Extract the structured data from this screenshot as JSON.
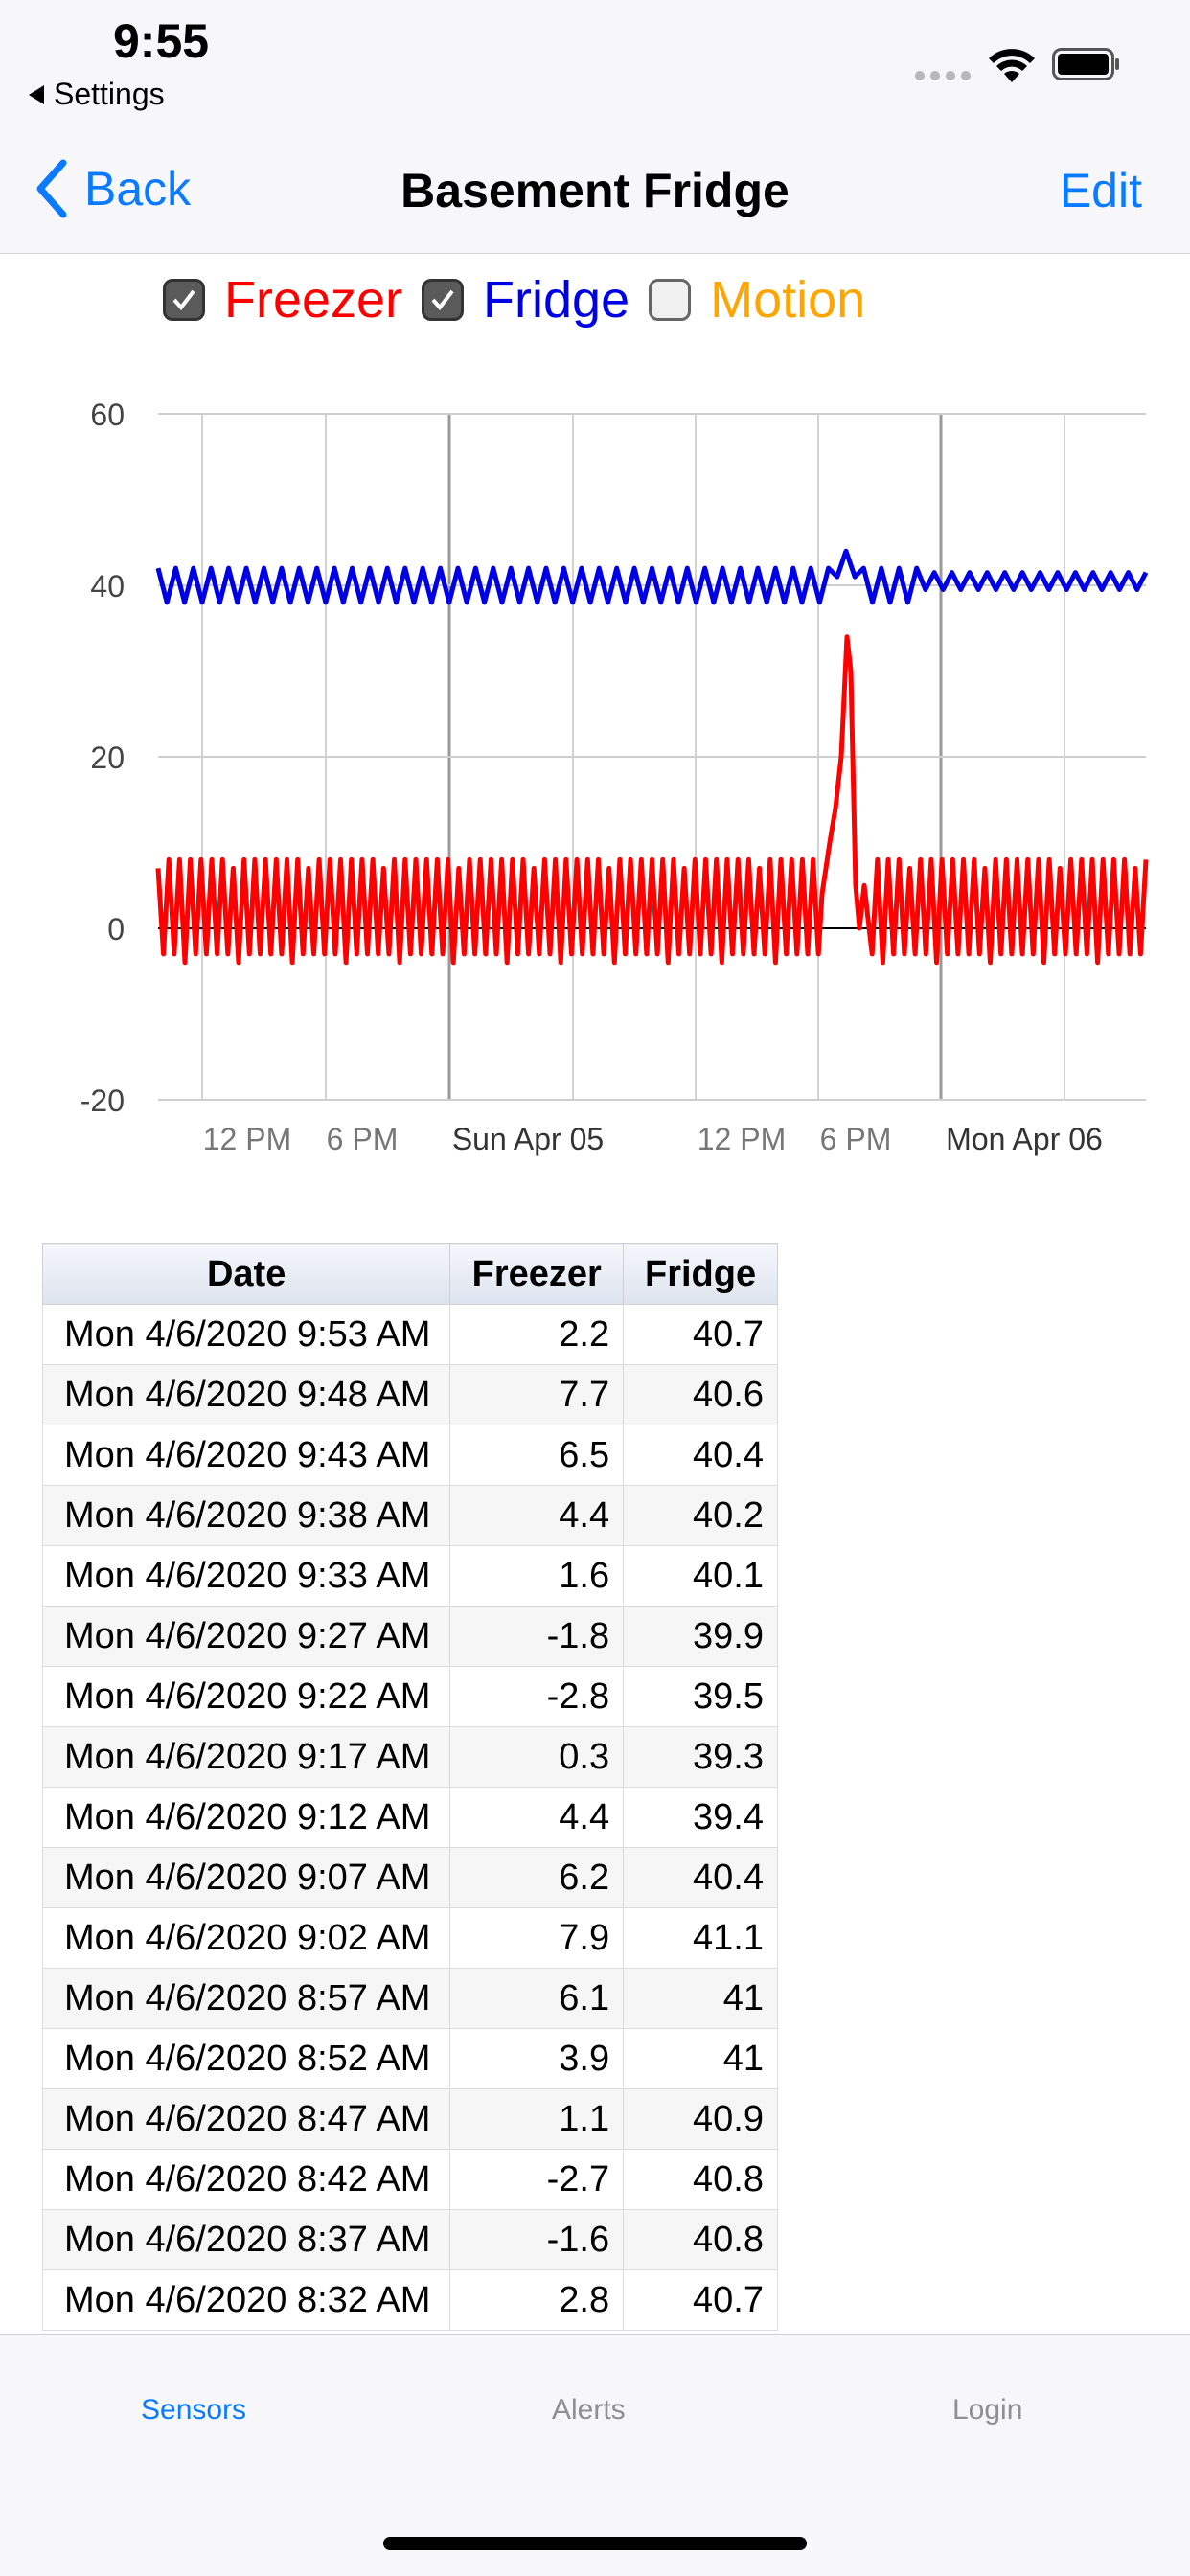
{
  "status": {
    "time": "9:55",
    "back_app": "Settings"
  },
  "nav": {
    "back": "Back",
    "title": "Basement Fridge",
    "edit": "Edit"
  },
  "legend": [
    {
      "label": "Freezer",
      "checked": true,
      "color": "#ff0000"
    },
    {
      "label": "Fridge",
      "checked": true,
      "color": "#0000e6"
    },
    {
      "label": "Motion",
      "checked": false,
      "color": "#ffa500"
    }
  ],
  "chart_data": {
    "type": "line",
    "ylim": [
      -20,
      60
    ],
    "y_ticks": [
      "60",
      "40",
      "20",
      "0",
      "-20"
    ],
    "x_ticks": [
      "12 PM",
      "6 PM",
      "Sun Apr 05",
      "12 PM",
      "6 PM",
      "Mon Apr 06"
    ],
    "series": [
      {
        "name": "Freezer",
        "color": "#ff0000",
        "pattern": "oscillating",
        "baseline_min": -3,
        "baseline_max": 8,
        "spike_peak": 34
      },
      {
        "name": "Fridge",
        "color": "#0000e6",
        "pattern": "oscillating",
        "baseline_min": 38,
        "baseline_max": 42,
        "spike_peak": 44
      }
    ]
  },
  "table": {
    "headers": [
      "Date",
      "Freezer",
      "Fridge"
    ],
    "rows": [
      [
        "Mon 4/6/2020 9:53 AM",
        "2.2",
        "40.7"
      ],
      [
        "Mon 4/6/2020 9:48 AM",
        "7.7",
        "40.6"
      ],
      [
        "Mon 4/6/2020 9:43 AM",
        "6.5",
        "40.4"
      ],
      [
        "Mon 4/6/2020 9:38 AM",
        "4.4",
        "40.2"
      ],
      [
        "Mon 4/6/2020 9:33 AM",
        "1.6",
        "40.1"
      ],
      [
        "Mon 4/6/2020 9:27 AM",
        "-1.8",
        "39.9"
      ],
      [
        "Mon 4/6/2020 9:22 AM",
        "-2.8",
        "39.5"
      ],
      [
        "Mon 4/6/2020 9:17 AM",
        "0.3",
        "39.3"
      ],
      [
        "Mon 4/6/2020 9:12 AM",
        "4.4",
        "39.4"
      ],
      [
        "Mon 4/6/2020 9:07 AM",
        "6.2",
        "40.4"
      ],
      [
        "Mon 4/6/2020 9:02 AM",
        "7.9",
        "41.1"
      ],
      [
        "Mon 4/6/2020 8:57 AM",
        "6.1",
        "41"
      ],
      [
        "Mon 4/6/2020 8:52 AM",
        "3.9",
        "41"
      ],
      [
        "Mon 4/6/2020 8:47 AM",
        "1.1",
        "40.9"
      ],
      [
        "Mon 4/6/2020 8:42 AM",
        "-2.7",
        "40.8"
      ],
      [
        "Mon 4/6/2020 8:37 AM",
        "-1.6",
        "40.8"
      ],
      [
        "Mon 4/6/2020 8:32 AM",
        "2.8",
        "40.7"
      ]
    ]
  },
  "tabs": [
    {
      "label": "Sensors",
      "active": true
    },
    {
      "label": "Alerts",
      "active": false
    },
    {
      "label": "Login",
      "active": false
    }
  ]
}
